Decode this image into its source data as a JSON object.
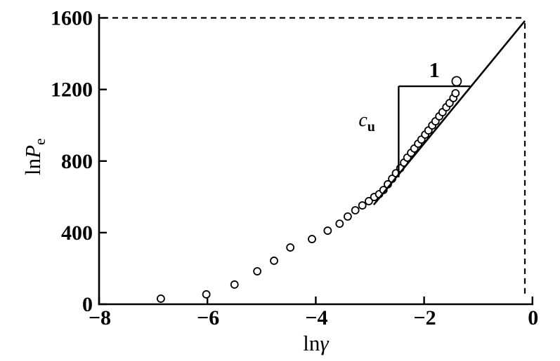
{
  "figure": {
    "background": "#ffffff",
    "ink_color": "#000000"
  },
  "chart_data": {
    "type": "scatter",
    "title": "",
    "xlabel": {
      "prefix": "ln",
      "symbol": "γ",
      "symbol_style": "italic"
    },
    "ylabel": {
      "prefix": "ln",
      "symbol": "P",
      "symbol_style": "italic",
      "subscript": "e"
    },
    "xlim": [
      -8,
      0
    ],
    "ylim": [
      0,
      1600
    ],
    "x_ticks": [
      -8,
      -6,
      -4,
      -2,
      0
    ],
    "x_tick_labels": [
      "−8",
      "−6",
      "−4",
      "−2",
      "0"
    ],
    "y_ticks": [
      0,
      400,
      800,
      1200,
      1600
    ],
    "y_tick_labels": [
      "0",
      "400",
      "800",
      "1200",
      "1600"
    ],
    "grid": false,
    "legend": null,
    "series": [
      {
        "name": "measured-points",
        "marker": "open-circle",
        "marker_radius": 5,
        "last_point_radius": 6.5,
        "points": [
          [
            -6.86,
            31
          ],
          [
            -6.02,
            55
          ],
          [
            -5.5,
            110
          ],
          [
            -5.08,
            184
          ],
          [
            -4.77,
            243
          ],
          [
            -4.47,
            317
          ],
          [
            -4.07,
            364
          ],
          [
            -3.78,
            411
          ],
          [
            -3.56,
            450
          ],
          [
            -3.41,
            490
          ],
          [
            -3.27,
            525
          ],
          [
            -3.14,
            552
          ],
          [
            -3.02,
            576
          ],
          [
            -2.92,
            599
          ],
          [
            -2.83,
            615
          ],
          [
            -2.75,
            638
          ],
          [
            -2.67,
            670
          ],
          [
            -2.59,
            701
          ],
          [
            -2.52,
            732
          ],
          [
            -2.44,
            760
          ],
          [
            -2.37,
            791
          ],
          [
            -2.31,
            819
          ],
          [
            -2.24,
            846
          ],
          [
            -2.18,
            870
          ],
          [
            -2.11,
            897
          ],
          [
            -2.05,
            920
          ],
          [
            -1.98,
            948
          ],
          [
            -1.92,
            971
          ],
          [
            -1.85,
            999
          ],
          [
            -1.79,
            1022
          ],
          [
            -1.72,
            1050
          ],
          [
            -1.66,
            1073
          ],
          [
            -1.59,
            1101
          ],
          [
            -1.53,
            1124
          ],
          [
            -1.46,
            1152
          ],
          [
            -1.42,
            1179
          ],
          [
            -1.4,
            1246
          ]
        ]
      }
    ],
    "fit_line": {
      "from": [
        -2.93,
        556
      ],
      "to": [
        -0.14,
        1583
      ]
    },
    "projection_lines": {
      "style": "dashed",
      "horizontal_at_y": 1600,
      "vertical_at_x": -0.14,
      "corner": [
        -0.14,
        1583
      ]
    },
    "slope_triangle": {
      "corner": [
        -2.47,
        1218
      ],
      "horizontal_to_x": -1.15,
      "vertical_to_y": 709,
      "top_label": "1",
      "side_label": {
        "text": "c",
        "subscript": "u"
      }
    }
  }
}
